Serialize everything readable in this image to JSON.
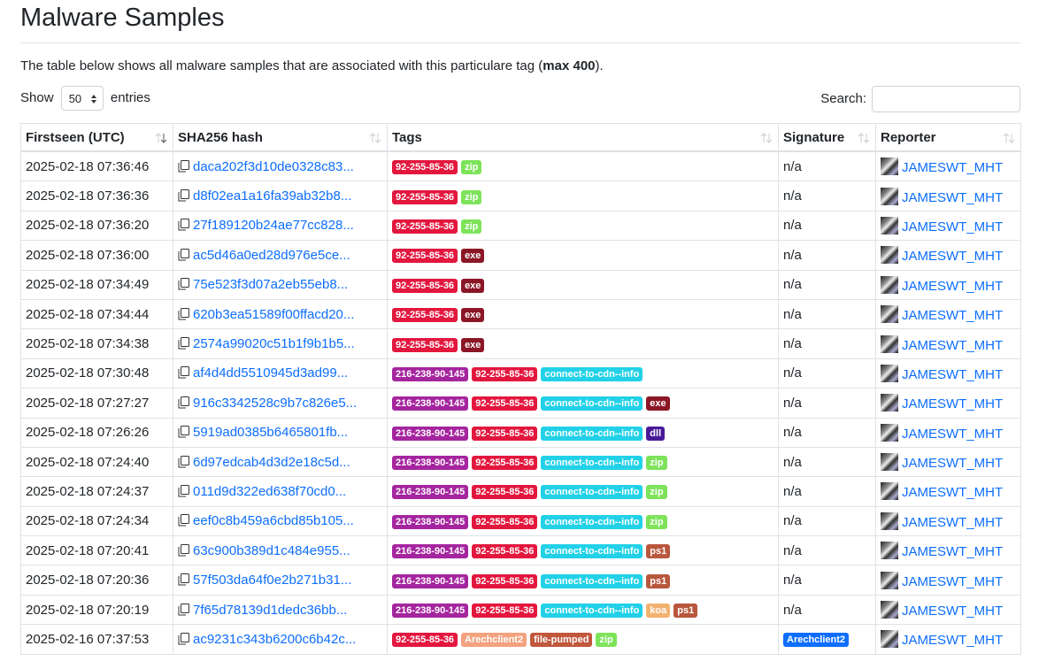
{
  "header": {
    "title": "Malware Samples"
  },
  "intro": {
    "before": "The table below shows all malware samples that are associated with this particulare tag (",
    "bold": "max 400",
    "after": ")."
  },
  "controls": {
    "show": "Show",
    "page_size": "50",
    "entries": "entries",
    "search": "Search:"
  },
  "table": {
    "columns": [
      "Firstseen (UTC)",
      "SHA256 hash",
      "Tags",
      "Signature",
      "Reporter"
    ],
    "tag_colors": {
      "92-255-85-36": "#e3173e",
      "zip": "#7de35a",
      "exe": "#8b1726",
      "216-238-90-145": "#a5259f",
      "connect-to-cdn--info": "#22d1e8",
      "dll": "#4a1a99",
      "ps1": "#b8573d",
      "koa": "#f2b270",
      "Arechclient2": "#f3a27f",
      "file-pumped": "#c1573c"
    },
    "signature_colors": {
      "Arechclient2": "#0d6efd"
    },
    "rows": [
      {
        "firstseen": "2025-02-18 07:36:46",
        "hash": "daca202f3d10de0328c83...",
        "tags": [
          "92-255-85-36",
          "zip"
        ],
        "signature": "n/a",
        "reporter": "JAMESWT_MHT"
      },
      {
        "firstseen": "2025-02-18 07:36:36",
        "hash": "d8f02ea1a16fa39ab32b8...",
        "tags": [
          "92-255-85-36",
          "zip"
        ],
        "signature": "n/a",
        "reporter": "JAMESWT_MHT"
      },
      {
        "firstseen": "2025-02-18 07:36:20",
        "hash": "27f189120b24ae77cc828...",
        "tags": [
          "92-255-85-36",
          "zip"
        ],
        "signature": "n/a",
        "reporter": "JAMESWT_MHT"
      },
      {
        "firstseen": "2025-02-18 07:36:00",
        "hash": "ac5d46a0ed28d976e5ce...",
        "tags": [
          "92-255-85-36",
          "exe"
        ],
        "signature": "n/a",
        "reporter": "JAMESWT_MHT"
      },
      {
        "firstseen": "2025-02-18 07:34:49",
        "hash": "75e523f3d07a2eb55eb8...",
        "tags": [
          "92-255-85-36",
          "exe"
        ],
        "signature": "n/a",
        "reporter": "JAMESWT_MHT"
      },
      {
        "firstseen": "2025-02-18 07:34:44",
        "hash": "620b3ea51589f00ffacd20...",
        "tags": [
          "92-255-85-36",
          "exe"
        ],
        "signature": "n/a",
        "reporter": "JAMESWT_MHT"
      },
      {
        "firstseen": "2025-02-18 07:34:38",
        "hash": "2574a99020c51b1f9b1b5...",
        "tags": [
          "92-255-85-36",
          "exe"
        ],
        "signature": "n/a",
        "reporter": "JAMESWT_MHT"
      },
      {
        "firstseen": "2025-02-18 07:30:48",
        "hash": "af4d4dd5510945d3ad99...",
        "tags": [
          "216-238-90-145",
          "92-255-85-36",
          "connect-to-cdn--info"
        ],
        "signature": "n/a",
        "reporter": "JAMESWT_MHT"
      },
      {
        "firstseen": "2025-02-18 07:27:27",
        "hash": "916c3342528c9b7c826e5...",
        "tags": [
          "216-238-90-145",
          "92-255-85-36",
          "connect-to-cdn--info",
          "exe"
        ],
        "signature": "n/a",
        "reporter": "JAMESWT_MHT"
      },
      {
        "firstseen": "2025-02-18 07:26:26",
        "hash": "5919ad0385b6465801fb...",
        "tags": [
          "216-238-90-145",
          "92-255-85-36",
          "connect-to-cdn--info",
          "dll"
        ],
        "signature": "n/a",
        "reporter": "JAMESWT_MHT"
      },
      {
        "firstseen": "2025-02-18 07:24:40",
        "hash": "6d97edcab4d3d2e18c5d...",
        "tags": [
          "216-238-90-145",
          "92-255-85-36",
          "connect-to-cdn--info",
          "zip"
        ],
        "signature": "n/a",
        "reporter": "JAMESWT_MHT"
      },
      {
        "firstseen": "2025-02-18 07:24:37",
        "hash": "011d9d322ed638f70cd0...",
        "tags": [
          "216-238-90-145",
          "92-255-85-36",
          "connect-to-cdn--info",
          "zip"
        ],
        "signature": "n/a",
        "reporter": "JAMESWT_MHT"
      },
      {
        "firstseen": "2025-02-18 07:24:34",
        "hash": "eef0c8b459a6cbd85b105...",
        "tags": [
          "216-238-90-145",
          "92-255-85-36",
          "connect-to-cdn--info",
          "zip"
        ],
        "signature": "n/a",
        "reporter": "JAMESWT_MHT"
      },
      {
        "firstseen": "2025-02-18 07:20:41",
        "hash": "63c900b389d1c484e955...",
        "tags": [
          "216-238-90-145",
          "92-255-85-36",
          "connect-to-cdn--info",
          "ps1"
        ],
        "signature": "n/a",
        "reporter": "JAMESWT_MHT"
      },
      {
        "firstseen": "2025-02-18 07:20:36",
        "hash": "57f503da64f0e2b271b31...",
        "tags": [
          "216-238-90-145",
          "92-255-85-36",
          "connect-to-cdn--info",
          "ps1"
        ],
        "signature": "n/a",
        "reporter": "JAMESWT_MHT"
      },
      {
        "firstseen": "2025-02-18 07:20:19",
        "hash": "7f65d78139d1dedc36bb...",
        "tags": [
          "216-238-90-145",
          "92-255-85-36",
          "connect-to-cdn--info",
          "koa",
          "ps1"
        ],
        "signature": "n/a",
        "reporter": "JAMESWT_MHT"
      },
      {
        "firstseen": "2025-02-16 07:37:53",
        "hash": "ac9231c343b6200c6b42c...",
        "tags": [
          "92-255-85-36",
          "Arechclient2",
          "file-pumped",
          "zip"
        ],
        "signature": "Arechclient2",
        "reporter": "JAMESWT_MHT"
      }
    ]
  }
}
